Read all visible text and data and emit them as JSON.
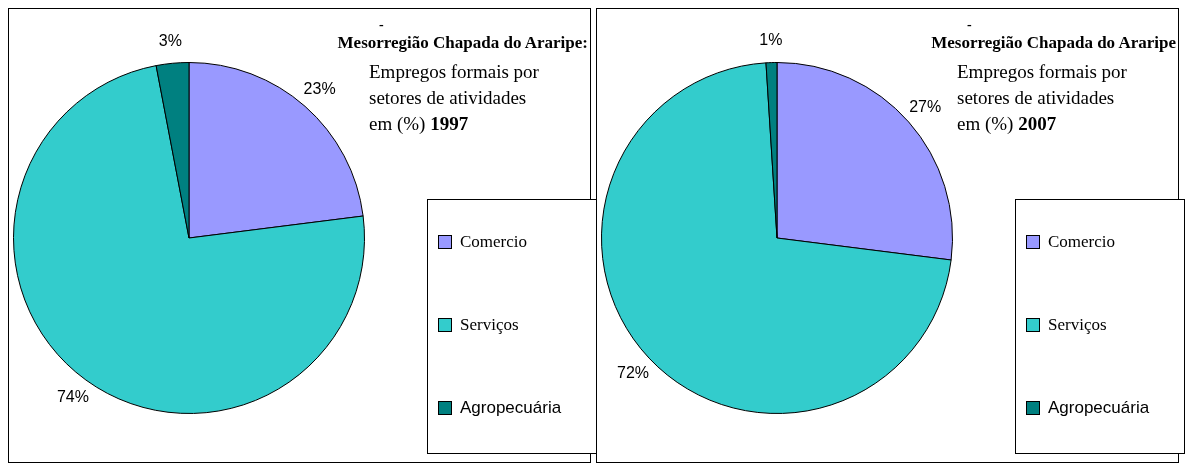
{
  "chart_data": [
    {
      "type": "pie",
      "title": "Mesorregião Chapada do Araripe:",
      "subtitle": "Empregos formais por setores de atividades em (%) 1997",
      "annotations": [
        "-"
      ],
      "categories": [
        "Comercio",
        "Serviços",
        "Agropecuária"
      ],
      "values": [
        23,
        74,
        3
      ],
      "value_labels": [
        "23%",
        "74%",
        "3%"
      ],
      "colors": [
        "#9999ff",
        "#33cccc",
        "#008080"
      ],
      "legend": "right"
    },
    {
      "type": "pie",
      "title": "Mesorregião Chapada do Araripe",
      "subtitle": "Empregos formais por setores de atividades em (%) 2007",
      "annotations": [
        "-"
      ],
      "categories": [
        "Comercio",
        "Serviços",
        "Agropecuária"
      ],
      "values": [
        27,
        72,
        1
      ],
      "value_labels": [
        "27%",
        "72%",
        "1%"
      ],
      "colors": [
        "#9999ff",
        "#33cccc",
        "#008080"
      ],
      "legend": "right"
    }
  ]
}
